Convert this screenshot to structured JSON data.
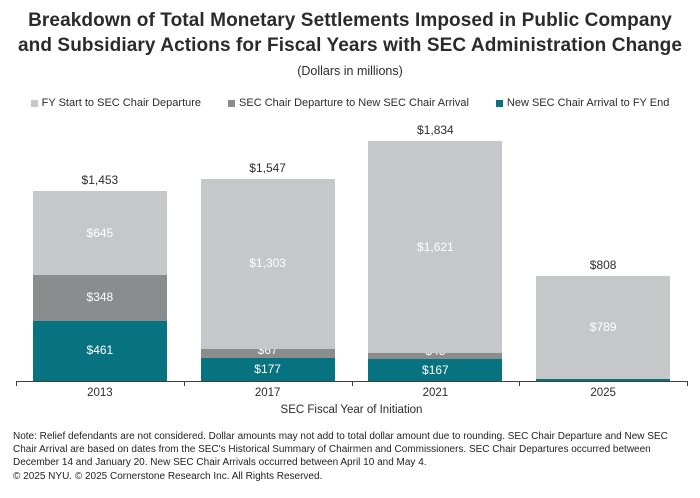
{
  "chart_data": {
    "type": "bar",
    "stacked": true,
    "title": "Breakdown of Total Monetary Settlements Imposed in Public Company\nand Subsidiary Actions for Fiscal Years with SEC Administration Change",
    "subtitle": "(Dollars in millions)",
    "xlabel": "SEC Fiscal Year of Initiation",
    "ylabel": "",
    "categories": [
      "2013",
      "2017",
      "2021",
      "2025"
    ],
    "totals": [
      1453,
      1547,
      1834,
      808
    ],
    "totals_display": [
      "$1,453",
      "$1,547",
      "$1,834",
      "$808"
    ],
    "ylim": [
      0,
      1912
    ],
    "grid": false,
    "legend_position": "top",
    "series": [
      {
        "name": "FY Start to SEC Chair Departure",
        "color": "#c6c7c8",
        "values": [
          645,
          1303,
          1621,
          789
        ],
        "labels": [
          "$645",
          "$1,303",
          "$1,621",
          "$789"
        ]
      },
      {
        "name": "SEC Chair Departure to New SEC Chair Arrival",
        "color": "#8b8c8e",
        "values": [
          348,
          67,
          45,
          null
        ],
        "labels": [
          "$348",
          "$67",
          "$45",
          null
        ]
      },
      {
        "name": "New SEC Chair Arrival to FY End",
        "color": "#077380",
        "values": [
          461,
          177,
          167,
          15
        ],
        "labels": [
          "$461",
          "$177",
          "$167",
          "$15"
        ]
      }
    ]
  },
  "footer": {
    "note": "Note: Relief defendants are not considered. Dollar amounts may not add to total dollar amount due to rounding. SEC Chair Departure and New SEC Chair Arrival are based on dates from the SEC's Historical Summary of Chairmen and Commissioners. SEC Chair Departures occurred between December 14 and January 20. New SEC Chair Arrivals occurred between April 10 and May 4.",
    "copyright": "© 2025 NYU. © 2025 Cornerstone Research Inc. All Rights Reserved."
  }
}
